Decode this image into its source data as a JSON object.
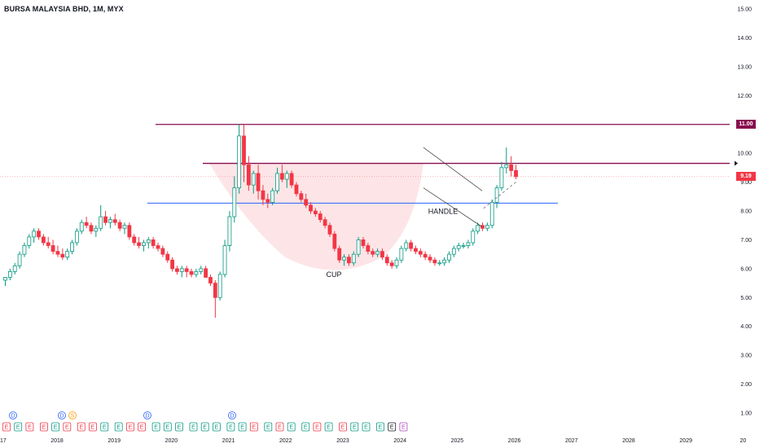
{
  "title": "BURSA MALAYSIA BHD, 1M, MYX",
  "colors": {
    "up": "#089981",
    "down": "#f23645",
    "resistance": "#880e4f",
    "support": "#2962ff",
    "cup_fill": "#fde0e3",
    "grid_text": "#131722"
  },
  "chart_data": {
    "type": "candlestick",
    "interval": "1M",
    "x_axis_labels": [
      "2018",
      "2019",
      "2020",
      "2021",
      "2022",
      "2023",
      "2024",
      "2025",
      "2026",
      "2027",
      "2028",
      "2029",
      "20"
    ],
    "x_axis_partial_left": "17",
    "y_axis_ticks": [
      "15.00",
      "14.00",
      "13.00",
      "12.00",
      "10.00",
      "9.00",
      "8.00",
      "7.00",
      "6.00",
      "5.00",
      "4.00",
      "3.00",
      "2.00",
      "1.00"
    ],
    "ylim": [
      1,
      15
    ],
    "current_price": "9.19",
    "levels": [
      {
        "label": "11.00",
        "value": 11.0,
        "style": "resistance"
      },
      {
        "label": "",
        "value": 9.65,
        "style": "resistance"
      },
      {
        "label": "",
        "value": 8.27,
        "style": "support"
      }
    ],
    "annotations": [
      "CUP",
      "HANDLE"
    ],
    "ohlc": [
      [
        5.6,
        5.7,
        5.4,
        5.7
      ],
      [
        5.7,
        6.0,
        5.6,
        5.9
      ],
      [
        5.9,
        6.2,
        5.8,
        6.1
      ],
      [
        6.1,
        6.6,
        6.0,
        6.5
      ],
      [
        6.5,
        6.9,
        6.4,
        6.8
      ],
      [
        6.8,
        7.2,
        6.7,
        7.1
      ],
      [
        7.1,
        7.4,
        6.9,
        7.3
      ],
      [
        7.3,
        7.4,
        7.0,
        7.1
      ],
      [
        7.1,
        7.2,
        6.8,
        6.9
      ],
      [
        6.9,
        7.1,
        6.7,
        6.8
      ],
      [
        6.8,
        7.0,
        6.5,
        6.6
      ],
      [
        6.6,
        6.8,
        6.4,
        6.5
      ],
      [
        6.5,
        6.7,
        6.3,
        6.4
      ],
      [
        6.4,
        6.7,
        6.3,
        6.6
      ],
      [
        6.6,
        7.0,
        6.5,
        6.9
      ],
      [
        6.9,
        7.4,
        6.8,
        7.3
      ],
      [
        7.3,
        7.7,
        7.2,
        7.6
      ],
      [
        7.6,
        7.8,
        7.4,
        7.5
      ],
      [
        7.5,
        7.6,
        7.2,
        7.3
      ],
      [
        7.3,
        7.5,
        7.1,
        7.4
      ],
      [
        7.4,
        8.2,
        7.3,
        7.8
      ],
      [
        7.8,
        8.0,
        7.5,
        7.6
      ],
      [
        7.6,
        7.8,
        7.4,
        7.7
      ],
      [
        7.7,
        7.9,
        7.5,
        7.6
      ],
      [
        7.6,
        7.7,
        7.3,
        7.4
      ],
      [
        7.4,
        7.6,
        7.2,
        7.5
      ],
      [
        7.5,
        7.6,
        7.0,
        7.1
      ],
      [
        7.1,
        7.2,
        6.8,
        6.9
      ],
      [
        6.9,
        7.1,
        6.7,
        6.8
      ],
      [
        6.8,
        7.0,
        6.6,
        6.9
      ],
      [
        6.9,
        7.1,
        6.7,
        7.0
      ],
      [
        7.0,
        7.1,
        6.7,
        6.8
      ],
      [
        6.8,
        6.9,
        6.6,
        6.7
      ],
      [
        6.7,
        6.8,
        6.4,
        6.5
      ],
      [
        6.5,
        6.6,
        6.2,
        6.3
      ],
      [
        6.3,
        6.4,
        5.9,
        6.0
      ],
      [
        6.0,
        6.1,
        5.8,
        5.9
      ],
      [
        5.9,
        6.1,
        5.7,
        6.0
      ],
      [
        6.0,
        6.1,
        5.7,
        5.9
      ],
      [
        5.9,
        6.0,
        5.7,
        5.8
      ],
      [
        5.8,
        6.0,
        5.7,
        5.9
      ],
      [
        5.9,
        6.1,
        5.8,
        6.0
      ],
      [
        6.0,
        6.1,
        5.7,
        5.7
      ],
      [
        5.7,
        5.8,
        5.4,
        5.5
      ],
      [
        5.5,
        5.6,
        4.3,
        5.0
      ],
      [
        5.0,
        5.9,
        4.9,
        5.8
      ],
      [
        5.8,
        7.0,
        5.7,
        6.8
      ],
      [
        6.8,
        8.0,
        6.6,
        7.8
      ],
      [
        7.8,
        9.2,
        7.6,
        8.8
      ],
      [
        8.8,
        11.0,
        8.6,
        10.6
      ],
      [
        10.6,
        11.0,
        9.0,
        9.6
      ],
      [
        9.6,
        9.9,
        8.7,
        8.9
      ],
      [
        8.9,
        9.4,
        8.6,
        9.3
      ],
      [
        9.3,
        9.6,
        8.4,
        8.7
      ],
      [
        8.7,
        8.9,
        8.2,
        8.4
      ],
      [
        8.4,
        8.6,
        8.1,
        8.3
      ],
      [
        8.3,
        8.8,
        8.2,
        8.7
      ],
      [
        8.7,
        9.5,
        8.6,
        9.3
      ],
      [
        9.3,
        9.6,
        9.0,
        9.1
      ],
      [
        9.1,
        9.4,
        8.8,
        9.3
      ],
      [
        9.3,
        9.4,
        8.8,
        8.9
      ],
      [
        8.9,
        9.0,
        8.5,
        8.6
      ],
      [
        8.6,
        8.7,
        8.3,
        8.4
      ],
      [
        8.4,
        8.6,
        8.1,
        8.2
      ],
      [
        8.2,
        8.3,
        7.9,
        8.0
      ],
      [
        8.0,
        8.1,
        7.8,
        7.9
      ],
      [
        7.9,
        8.0,
        7.6,
        7.7
      ],
      [
        7.7,
        7.8,
        7.4,
        7.5
      ],
      [
        7.5,
        7.6,
        7.1,
        7.2
      ],
      [
        7.2,
        7.3,
        6.6,
        6.7
      ],
      [
        6.7,
        6.8,
        6.2,
        6.3
      ],
      [
        6.3,
        6.5,
        6.1,
        6.4
      ],
      [
        6.4,
        6.5,
        6.1,
        6.2
      ],
      [
        6.2,
        6.6,
        6.1,
        6.5
      ],
      [
        6.5,
        7.1,
        6.4,
        7.0
      ],
      [
        7.0,
        7.1,
        6.7,
        6.8
      ],
      [
        6.8,
        6.9,
        6.5,
        6.6
      ],
      [
        6.6,
        6.7,
        6.4,
        6.5
      ],
      [
        6.5,
        6.7,
        6.4,
        6.6
      ],
      [
        6.6,
        6.7,
        6.3,
        6.4
      ],
      [
        6.4,
        6.5,
        6.1,
        6.2
      ],
      [
        6.2,
        6.3,
        6.0,
        6.1
      ],
      [
        6.1,
        6.4,
        6.0,
        6.3
      ],
      [
        6.3,
        6.8,
        6.2,
        6.7
      ],
      [
        6.7,
        7.0,
        6.6,
        6.9
      ],
      [
        6.9,
        7.0,
        6.6,
        6.7
      ],
      [
        6.7,
        6.8,
        6.5,
        6.6
      ],
      [
        6.6,
        6.7,
        6.4,
        6.5
      ],
      [
        6.5,
        6.6,
        6.3,
        6.4
      ],
      [
        6.4,
        6.5,
        6.2,
        6.3
      ],
      [
        6.3,
        6.4,
        6.1,
        6.2
      ],
      [
        6.2,
        6.3,
        6.1,
        6.2
      ],
      [
        6.2,
        6.4,
        6.1,
        6.3
      ],
      [
        6.3,
        6.6,
        6.2,
        6.5
      ],
      [
        6.5,
        6.8,
        6.4,
        6.7
      ],
      [
        6.7,
        6.9,
        6.6,
        6.8
      ],
      [
        6.8,
        6.9,
        6.7,
        6.8
      ],
      [
        6.8,
        7.0,
        6.7,
        6.9
      ],
      [
        6.9,
        7.4,
        6.8,
        7.3
      ],
      [
        7.3,
        7.6,
        7.2,
        7.5
      ],
      [
        7.5,
        7.6,
        7.3,
        7.4
      ],
      [
        7.4,
        7.6,
        7.3,
        7.5
      ],
      [
        7.5,
        8.4,
        7.4,
        8.3
      ],
      [
        8.3,
        8.9,
        8.1,
        8.8
      ],
      [
        8.8,
        9.7,
        8.7,
        9.5
      ],
      [
        9.5,
        10.2,
        9.3,
        9.6
      ],
      [
        9.6,
        9.9,
        9.2,
        9.4
      ],
      [
        9.4,
        9.6,
        9.1,
        9.19
      ]
    ],
    "events": [
      {
        "symbol": "E",
        "kind": "earnings-down"
      },
      {
        "symbol": "E",
        "kind": "earnings-up"
      },
      {
        "symbol": "E",
        "kind": "earnings-down"
      },
      {
        "symbol": "E",
        "kind": "earnings-down"
      },
      {
        "symbol": "E",
        "kind": "earnings-up"
      },
      {
        "symbol": "E",
        "kind": "earnings-down"
      },
      {
        "symbol": "E",
        "kind": "earnings-down"
      },
      {
        "symbol": "E",
        "kind": "earnings-down"
      },
      {
        "symbol": "E",
        "kind": "earnings-up"
      },
      {
        "symbol": "E",
        "kind": "earnings-up"
      },
      {
        "symbol": "E",
        "kind": "earnings-down"
      },
      {
        "symbol": "E",
        "kind": "earnings-down"
      },
      {
        "symbol": "E",
        "kind": "earnings-up"
      },
      {
        "symbol": "E",
        "kind": "earnings-up"
      },
      {
        "symbol": "E",
        "kind": "earnings-up"
      },
      {
        "symbol": "E",
        "kind": "earnings-up"
      },
      {
        "symbol": "E",
        "kind": "earnings-up"
      },
      {
        "symbol": "E",
        "kind": "earnings-up"
      },
      {
        "symbol": "E",
        "kind": "earnings-up"
      },
      {
        "symbol": "E",
        "kind": "earnings-up"
      },
      {
        "symbol": "E",
        "kind": "earnings-down"
      },
      {
        "symbol": "E",
        "kind": "earnings-up"
      },
      {
        "symbol": "E",
        "kind": "earnings-down"
      },
      {
        "symbol": "E",
        "kind": "earnings-up"
      },
      {
        "symbol": "E",
        "kind": "earnings-up"
      },
      {
        "symbol": "E",
        "kind": "earnings-down"
      },
      {
        "symbol": "E",
        "kind": "earnings-up"
      },
      {
        "symbol": "E",
        "kind": "earnings-down"
      },
      {
        "symbol": "E",
        "kind": "earnings-up"
      },
      {
        "symbol": "E",
        "kind": "earnings-up"
      },
      {
        "symbol": "E",
        "kind": "earnings-up"
      },
      {
        "symbol": "E",
        "kind": "earnings-pending"
      },
      {
        "symbol": "E",
        "kind": "earnings-future"
      }
    ],
    "dividends": [
      {
        "symbol": "D"
      },
      {
        "symbol": "D"
      },
      {
        "symbol": "S"
      },
      {
        "symbol": "D"
      },
      {
        "symbol": "D"
      }
    ]
  }
}
